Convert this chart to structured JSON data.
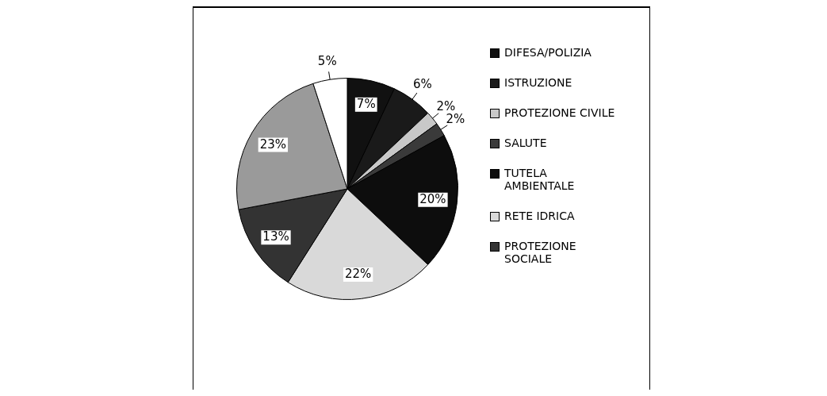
{
  "chart_data": {
    "type": "pie",
    "categories": [
      "DIFESA/POLIZIA",
      "ISTRUZIONE",
      "PROTEZIONE CIVILE",
      "SALUTE",
      "TUTELA AMBIENTALE",
      "RETE IDRICA",
      "PROTEZIONE SOCIALE",
      null,
      null
    ],
    "values": [
      7,
      6,
      2,
      2,
      20,
      22,
      13,
      23,
      5
    ],
    "colors": [
      "#111111",
      "#1a1a1a",
      "#c8c8c8",
      "#3a3a3a",
      "#0d0d0d",
      "#d9d9d9",
      "#333333",
      "#9a9a9a",
      "#ffffff"
    ],
    "value_labels": [
      "7%",
      "6%",
      "2%",
      "2%",
      "20%",
      "22%",
      "13%",
      "23%",
      "5%"
    ],
    "legend": "right"
  }
}
